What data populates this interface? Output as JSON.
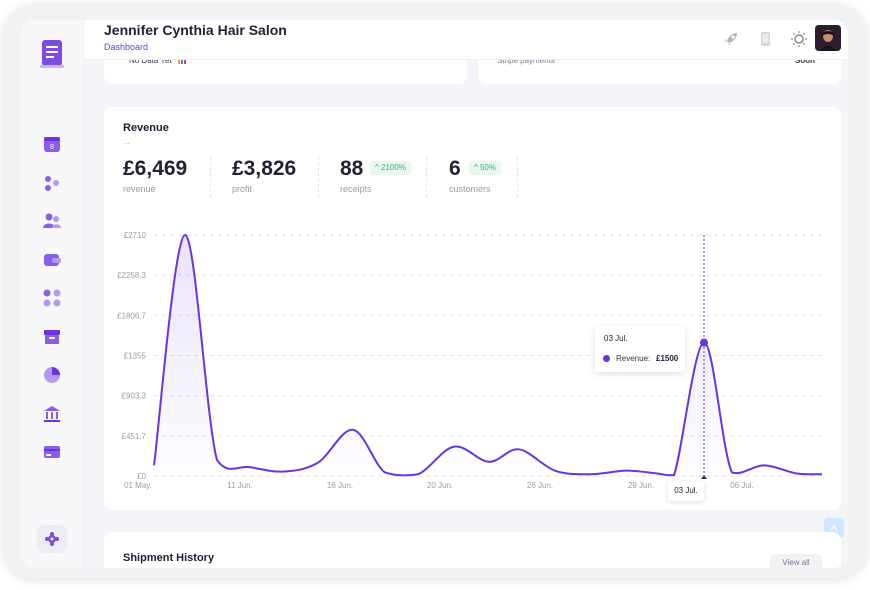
{
  "header": {
    "title": "Jennifer Cynthia Hair Salon",
    "breadcrumb": "Dashboard"
  },
  "top_cards": {
    "left_text": "No Data Yet",
    "right_text": "Stripe payments",
    "right_value": "Soon"
  },
  "revenue": {
    "title": "Revenue",
    "subtitle": "...",
    "stats": [
      {
        "value": "£6,469",
        "label": "revenue",
        "badge": ""
      },
      {
        "value": "£3,826",
        "label": "profit",
        "badge": ""
      },
      {
        "value": "88",
        "label": "receipts",
        "badge": "2100%"
      },
      {
        "value": "6",
        "label": "customers",
        "badge": "50%"
      }
    ],
    "tooltip": {
      "date": "03 Jul.",
      "label": "Revenue:",
      "value": "£1500"
    },
    "crosshair_label": "03 Jul."
  },
  "shipment": {
    "title": "Shipment History",
    "view_all": "View all"
  },
  "colors": {
    "accent": "#6a35db",
    "badge_green": "#39b36a"
  },
  "chart_data": {
    "type": "area",
    "title": "",
    "xlabel": "",
    "ylabel": "",
    "y_ticks": [
      "£0",
      "£451.7",
      "£903.3",
      "£1355",
      "£1806.7",
      "£2258.3",
      "£2710"
    ],
    "x_ticks": [
      "01 May.",
      "11 Jun.",
      "16 Jun.",
      "20 Jun.",
      "26 Jun.",
      "29 Jun.",
      "03 Jul.",
      "06 Jul."
    ],
    "ylim": [
      0,
      2710
    ],
    "series": [
      {
        "values": [
          120,
          2710,
          180,
          100,
          50,
          150,
          520,
          40,
          20,
          330,
          160,
          300,
          60,
          20,
          60,
          30,
          10,
          1500,
          40,
          120,
          30,
          20
        ]
      }
    ]
  }
}
